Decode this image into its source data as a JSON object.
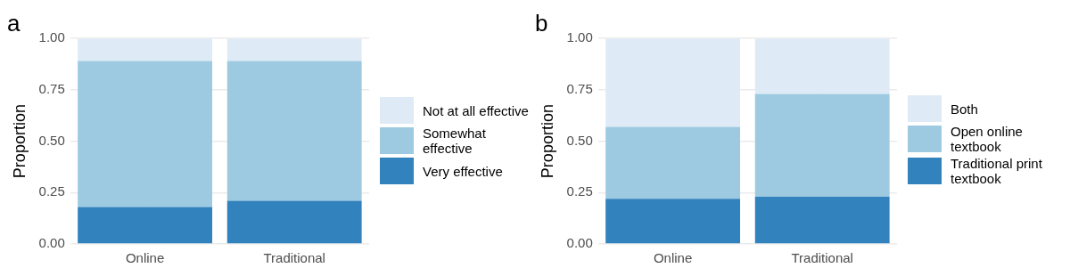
{
  "chart_data": [
    {
      "type": "bar",
      "title": "a",
      "ylabel": "Proportion",
      "stacked": true,
      "legend": "right",
      "grid": true,
      "categories": [
        "Online",
        "Traditional"
      ],
      "series": [
        {
          "name": "Very effective",
          "color": "#3182bd",
          "values": [
            0.18,
            0.21
          ]
        },
        {
          "name": "Somewhat effective",
          "color": "#9ecae1",
          "values": [
            0.71,
            0.68
          ]
        },
        {
          "name": "Not at all effective",
          "color": "#deebf7",
          "values": [
            0.11,
            0.11
          ]
        }
      ],
      "ylim": [
        0,
        1
      ],
      "yticks": [
        {
          "value": 0,
          "label": "0.00"
        },
        {
          "value": 0.25,
          "label": "0.25"
        },
        {
          "value": 0.5,
          "label": "0.50"
        },
        {
          "value": 0.75,
          "label": "0.75"
        },
        {
          "value": 1,
          "label": "1.00"
        }
      ]
    },
    {
      "type": "bar",
      "title": "b",
      "ylabel": "Proportion",
      "stacked": true,
      "legend": "right",
      "grid": true,
      "categories": [
        "Online",
        "Traditional"
      ],
      "series": [
        {
          "name": "Traditional print textbook",
          "color": "#3182bd",
          "values": [
            0.22,
            0.23
          ]
        },
        {
          "name": "Open online textbook",
          "color": "#9ecae1",
          "values": [
            0.35,
            0.5
          ]
        },
        {
          "name": "Both",
          "color": "#deebf7",
          "values": [
            0.43,
            0.27
          ]
        }
      ],
      "ylim": [
        0,
        1
      ],
      "yticks": [
        {
          "value": 0,
          "label": "0.00"
        },
        {
          "value": 0.25,
          "label": "0.25"
        },
        {
          "value": 0.5,
          "label": "0.50"
        },
        {
          "value": 0.75,
          "label": "0.75"
        },
        {
          "value": 1,
          "label": "1.00"
        }
      ]
    }
  ]
}
